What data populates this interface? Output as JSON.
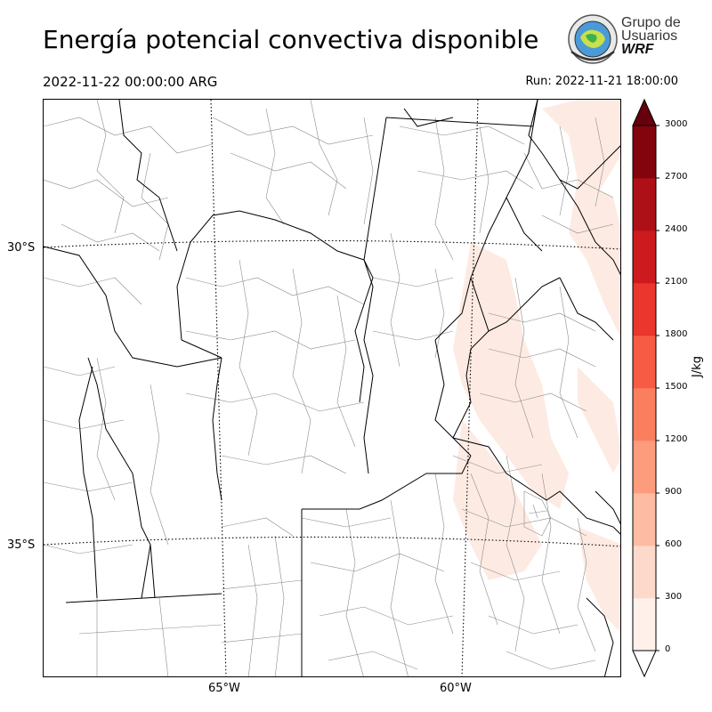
{
  "header": {
    "title": "Energía potencial convectiva disponible",
    "valid_time": "2022-11-22 00:00:00 ARG",
    "run_time": "Run: 2022-11-21 18:00:00"
  },
  "logo": {
    "line1": "Grupo de",
    "line2": "Usuarios",
    "line3": "WRF"
  },
  "map": {
    "latitudes": [
      "30°S",
      "35°S"
    ],
    "longitudes": [
      "65°W",
      "60°W"
    ],
    "colors": {
      "borders": "#000000",
      "departments": "#8a8a8a",
      "gridlines": "#000000",
      "cape_low": "#fdebe3"
    }
  },
  "colorbar": {
    "unit": "J/kg",
    "ticks": [
      "0",
      "300",
      "600",
      "900",
      "1200",
      "1500",
      "1800",
      "2100",
      "2400",
      "2700",
      "3000"
    ],
    "colors": [
      "#fff0ea",
      "#fdd9cb",
      "#fcbba2",
      "#fc9c7d",
      "#fb7e5f",
      "#f75b43",
      "#ea362c",
      "#cc1a1e",
      "#ad1016",
      "#83040c"
    ],
    "extend_low": "#ffffff",
    "extend_high": "#67000d"
  }
}
